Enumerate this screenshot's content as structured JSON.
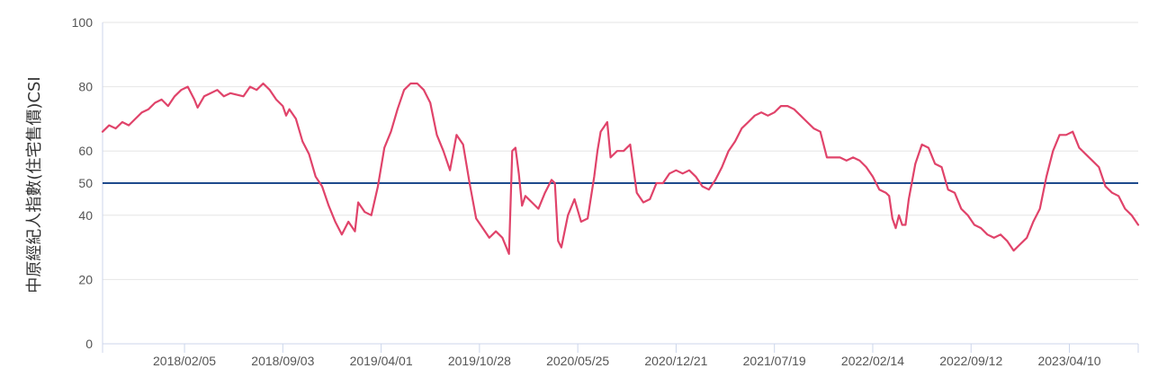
{
  "chart_data": {
    "type": "line",
    "ylabel": "中原經紀人指數(住宅售價)CSI",
    "ylim": [
      0,
      100
    ],
    "yticks": [
      0,
      20,
      40,
      50,
      60,
      80,
      100
    ],
    "xlim": [
      "2017-08-14",
      "2023-09-04"
    ],
    "xticks": [
      "2018/02/05",
      "2018/09/03",
      "2019/04/01",
      "2019/10/28",
      "2020/05/25",
      "2020/12/21",
      "2021/07/19",
      "2022/02/14",
      "2022/09/12",
      "2023/04/10"
    ],
    "grid": true,
    "series": [
      {
        "color": "#e0436a",
        "points": [
          [
            "2017-08-14",
            66
          ],
          [
            "2017-08-28",
            68
          ],
          [
            "2017-09-11",
            67
          ],
          [
            "2017-09-25",
            69
          ],
          [
            "2017-10-09",
            68
          ],
          [
            "2017-10-23",
            70
          ],
          [
            "2017-11-06",
            72
          ],
          [
            "2017-11-20",
            73
          ],
          [
            "2017-12-04",
            75
          ],
          [
            "2017-12-18",
            76
          ],
          [
            "2018-01-01",
            74
          ],
          [
            "2018-01-15",
            77
          ],
          [
            "2018-01-29",
            79
          ],
          [
            "2018-02-12",
            80
          ],
          [
            "2018-02-26",
            76
          ],
          [
            "2018-03-05",
            73.5
          ],
          [
            "2018-03-19",
            77
          ],
          [
            "2018-04-02",
            78
          ],
          [
            "2018-04-16",
            79
          ],
          [
            "2018-04-30",
            77
          ],
          [
            "2018-05-14",
            78
          ],
          [
            "2018-05-28",
            77.5
          ],
          [
            "2018-06-11",
            77
          ],
          [
            "2018-06-25",
            80
          ],
          [
            "2018-07-09",
            79
          ],
          [
            "2018-07-23",
            81
          ],
          [
            "2018-08-06",
            79
          ],
          [
            "2018-08-20",
            76
          ],
          [
            "2018-09-03",
            74
          ],
          [
            "2018-09-10",
            71
          ],
          [
            "2018-09-17",
            73
          ],
          [
            "2018-10-01",
            70
          ],
          [
            "2018-10-15",
            63
          ],
          [
            "2018-10-29",
            59
          ],
          [
            "2018-11-12",
            52
          ],
          [
            "2018-11-26",
            49
          ],
          [
            "2018-12-10",
            43
          ],
          [
            "2018-12-24",
            38
          ],
          [
            "2019-01-07",
            34
          ],
          [
            "2019-01-21",
            38
          ],
          [
            "2019-02-04",
            35
          ],
          [
            "2019-02-11",
            44
          ],
          [
            "2019-02-25",
            41
          ],
          [
            "2019-03-11",
            40
          ],
          [
            "2019-03-25",
            49
          ],
          [
            "2019-04-08",
            61
          ],
          [
            "2019-04-22",
            66
          ],
          [
            "2019-05-06",
            73
          ],
          [
            "2019-05-20",
            79
          ],
          [
            "2019-06-03",
            81
          ],
          [
            "2019-06-17",
            81
          ],
          [
            "2019-07-01",
            79
          ],
          [
            "2019-07-15",
            75
          ],
          [
            "2019-07-29",
            65
          ],
          [
            "2019-08-12",
            60
          ],
          [
            "2019-08-26",
            54
          ],
          [
            "2019-09-09",
            65
          ],
          [
            "2019-09-23",
            62
          ],
          [
            "2019-10-07",
            50
          ],
          [
            "2019-10-21",
            39
          ],
          [
            "2019-11-04",
            36
          ],
          [
            "2019-11-18",
            33
          ],
          [
            "2019-12-02",
            35
          ],
          [
            "2019-12-16",
            33
          ],
          [
            "2019-12-30",
            28
          ],
          [
            "2020-01-06",
            60
          ],
          [
            "2020-01-13",
            61
          ],
          [
            "2020-01-20",
            53
          ],
          [
            "2020-01-27",
            43
          ],
          [
            "2020-02-03",
            46
          ],
          [
            "2020-02-17",
            44
          ],
          [
            "2020-03-02",
            42
          ],
          [
            "2020-03-16",
            47
          ],
          [
            "2020-03-30",
            51
          ],
          [
            "2020-04-06",
            50
          ],
          [
            "2020-04-13",
            32
          ],
          [
            "2020-04-20",
            30
          ],
          [
            "2020-05-04",
            40
          ],
          [
            "2020-05-18",
            45
          ],
          [
            "2020-06-01",
            38
          ],
          [
            "2020-06-15",
            39
          ],
          [
            "2020-06-29",
            52
          ],
          [
            "2020-07-06",
            60
          ],
          [
            "2020-07-13",
            66
          ],
          [
            "2020-07-27",
            69
          ],
          [
            "2020-08-03",
            58
          ],
          [
            "2020-08-17",
            60
          ],
          [
            "2020-08-31",
            60
          ],
          [
            "2020-09-14",
            62
          ],
          [
            "2020-09-28",
            47
          ],
          [
            "2020-10-12",
            44
          ],
          [
            "2020-10-26",
            45
          ],
          [
            "2020-11-09",
            50
          ],
          [
            "2020-11-23",
            50
          ],
          [
            "2020-12-07",
            53
          ],
          [
            "2020-12-21",
            54
          ],
          [
            "2021-01-04",
            53
          ],
          [
            "2021-01-18",
            54
          ],
          [
            "2021-02-01",
            52
          ],
          [
            "2021-02-15",
            49
          ],
          [
            "2021-03-01",
            48
          ],
          [
            "2021-03-15",
            51
          ],
          [
            "2021-03-29",
            55
          ],
          [
            "2021-04-12",
            60
          ],
          [
            "2021-04-26",
            63
          ],
          [
            "2021-05-10",
            67
          ],
          [
            "2021-05-24",
            69
          ],
          [
            "2021-06-07",
            71
          ],
          [
            "2021-06-21",
            72
          ],
          [
            "2021-07-05",
            71
          ],
          [
            "2021-07-19",
            72
          ],
          [
            "2021-08-02",
            74
          ],
          [
            "2021-08-16",
            74
          ],
          [
            "2021-08-30",
            73
          ],
          [
            "2021-09-13",
            71
          ],
          [
            "2021-09-27",
            69
          ],
          [
            "2021-10-11",
            67
          ],
          [
            "2021-10-25",
            66
          ],
          [
            "2021-11-08",
            58
          ],
          [
            "2021-11-22",
            58
          ],
          [
            "2021-12-06",
            58
          ],
          [
            "2021-12-20",
            57
          ],
          [
            "2022-01-03",
            58
          ],
          [
            "2022-01-17",
            57
          ],
          [
            "2022-01-31",
            55
          ],
          [
            "2022-02-14",
            52
          ],
          [
            "2022-02-28",
            48
          ],
          [
            "2022-03-14",
            47
          ],
          [
            "2022-03-21",
            46
          ],
          [
            "2022-03-28",
            39
          ],
          [
            "2022-04-04",
            36
          ],
          [
            "2022-04-11",
            40
          ],
          [
            "2022-04-18",
            37
          ],
          [
            "2022-04-25",
            37
          ],
          [
            "2022-05-02",
            45
          ],
          [
            "2022-05-16",
            56
          ],
          [
            "2022-05-30",
            62
          ],
          [
            "2022-06-13",
            61
          ],
          [
            "2022-06-27",
            56
          ],
          [
            "2022-07-11",
            55
          ],
          [
            "2022-07-25",
            48
          ],
          [
            "2022-08-08",
            47
          ],
          [
            "2022-08-22",
            42
          ],
          [
            "2022-09-05",
            40
          ],
          [
            "2022-09-19",
            37
          ],
          [
            "2022-10-03",
            36
          ],
          [
            "2022-10-17",
            34
          ],
          [
            "2022-10-31",
            33
          ],
          [
            "2022-11-14",
            34
          ],
          [
            "2022-11-28",
            32
          ],
          [
            "2022-12-12",
            29
          ],
          [
            "2022-12-26",
            31
          ],
          [
            "2023-01-09",
            33
          ],
          [
            "2023-01-23",
            38
          ],
          [
            "2023-02-06",
            42
          ],
          [
            "2023-02-20",
            52
          ],
          [
            "2023-03-06",
            60
          ],
          [
            "2023-03-20",
            65
          ],
          [
            "2023-04-03",
            65
          ],
          [
            "2023-04-17",
            66
          ],
          [
            "2023-05-01",
            61
          ],
          [
            "2023-05-15",
            59
          ],
          [
            "2023-05-29",
            57
          ],
          [
            "2023-06-12",
            55
          ],
          [
            "2023-06-26",
            49
          ],
          [
            "2023-07-10",
            47
          ],
          [
            "2023-07-24",
            46
          ],
          [
            "2023-08-07",
            42
          ],
          [
            "2023-08-21",
            40
          ],
          [
            "2023-09-04",
            37
          ]
        ]
      }
    ],
    "reference_lines": [
      {
        "y": 50,
        "color": "#1e4a8c"
      }
    ]
  }
}
